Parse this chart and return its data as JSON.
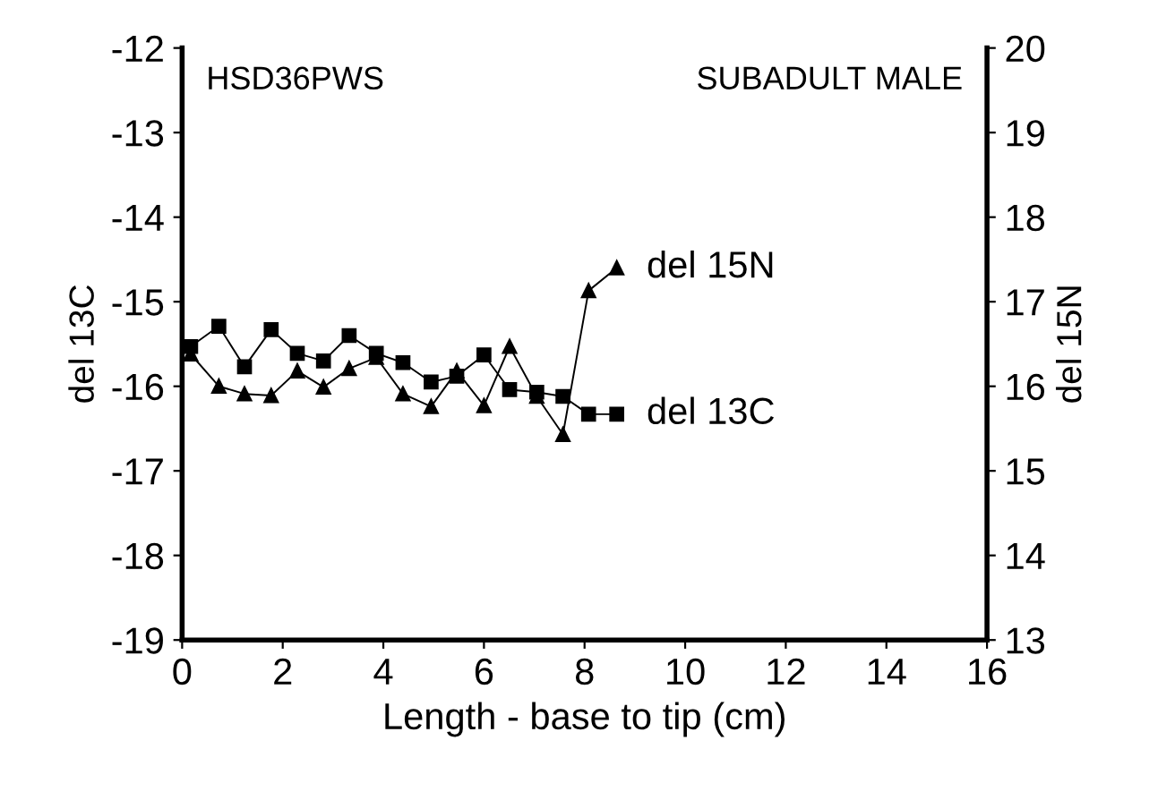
{
  "chart_data": {
    "type": "line",
    "xlabel": "Length - base to tip (cm)",
    "ylabel": "del 13C",
    "y2label": "del 15N",
    "annotations": [
      "HSD36PWS",
      "SUBADULT MALE"
    ],
    "xlim": [
      0,
      16
    ],
    "xticks": [
      0,
      2,
      4,
      6,
      8,
      10,
      12,
      14,
      16
    ],
    "ylim": [
      -19,
      -12
    ],
    "yticks": [
      -19,
      -18,
      -17,
      -16,
      -15,
      -14,
      -13,
      -12
    ],
    "y2lim": [
      13,
      20
    ],
    "y2ticks": [
      13,
      14,
      15,
      16,
      17,
      18,
      19,
      20
    ],
    "grid": false,
    "legend": false,
    "line_style": "solid",
    "series": [
      {
        "name": "del 13C",
        "color": "#000000",
        "marker": "square",
        "x": [
          0.17,
          0.73,
          1.24,
          1.77,
          2.29,
          2.81,
          3.32,
          3.86,
          4.39,
          4.95,
          5.46,
          6.0,
          6.51,
          7.05,
          7.57,
          8.08,
          8.64
        ],
        "values": [
          -15.53,
          -15.29,
          -15.77,
          -15.33,
          -15.61,
          -15.7,
          -15.4,
          -15.61,
          -15.72,
          -15.95,
          -15.88,
          -15.63,
          -16.04,
          -16.07,
          -16.12,
          -16.33,
          -16.33
        ]
      },
      {
        "name": "del 15N",
        "color": "#000000",
        "marker": "triangle",
        "axis": "y2",
        "x": [
          0.17,
          0.73,
          1.24,
          1.77,
          2.29,
          2.81,
          3.32,
          3.86,
          4.39,
          4.95,
          5.46,
          6.0,
          6.51,
          7.05,
          7.57,
          8.08,
          8.64
        ],
        "values": [
          16.38,
          16.0,
          15.91,
          15.89,
          16.18,
          15.99,
          16.21,
          16.34,
          15.91,
          15.76,
          16.18,
          15.77,
          16.47,
          15.88,
          15.43,
          17.13,
          17.4
        ]
      }
    ]
  }
}
